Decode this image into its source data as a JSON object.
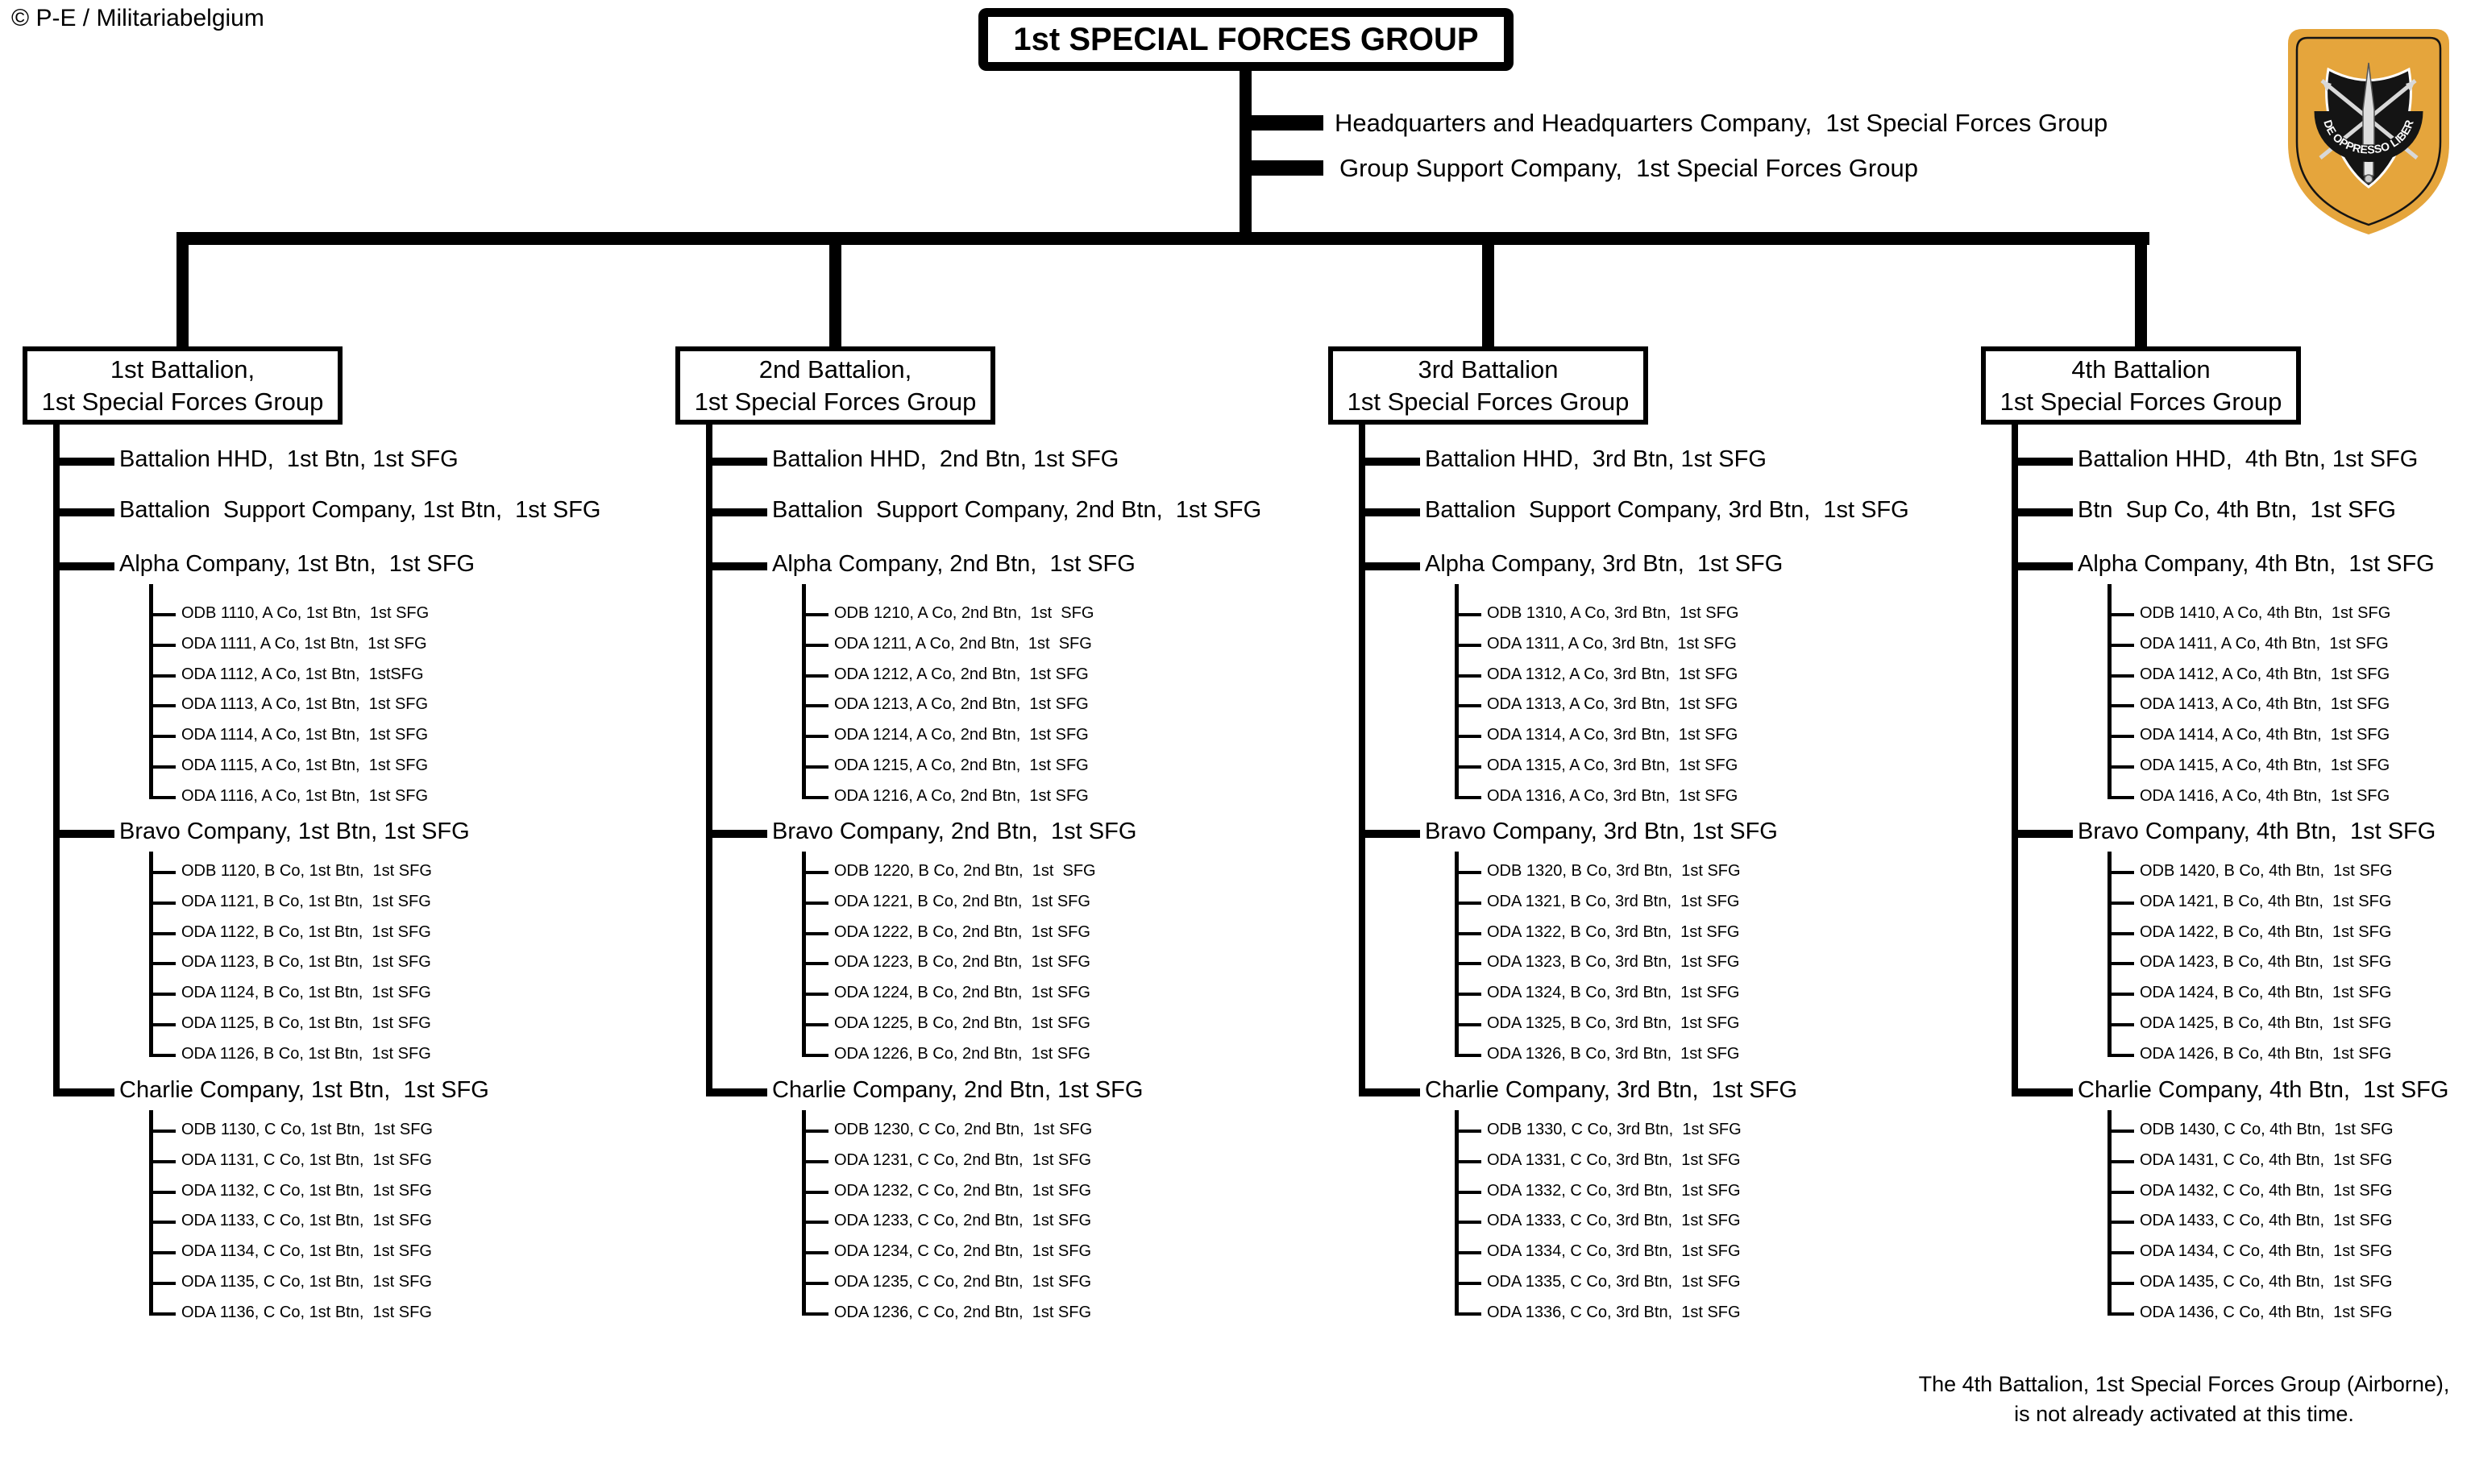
{
  "copyright": "© P-E / Militariabelgium",
  "title": "1st SPECIAL FORCES GROUP",
  "group_units": [
    "Headquarters and Headquarters Company,  1st Special Forces Group",
    "Group Support Company,  1st Special Forces Group"
  ],
  "badge": {
    "motto": "DE OPPRESSO LIBER",
    "gold": "#E5A53C",
    "black": "#141414",
    "silver": "#D8D8D8"
  },
  "note_lines": [
    "The 4th Battalion, 1st Special Forces Group (Airborne),",
    "is not already activated at this time."
  ],
  "battalions": [
    {
      "box_lines": [
        "1st Battalion,",
        "1st Special Forces Group"
      ],
      "companies": [
        {
          "label": "Battalion HHD,  1st Btn, 1st SFG",
          "teams": []
        },
        {
          "label": "Battalion  Support Company, 1st Btn,  1st SFG",
          "teams": []
        },
        {
          "label": "Alpha Company, 1st Btn,  1st SFG",
          "teams": [
            "ODB 1110, A Co, 1st Btn,  1st SFG",
            "ODA 1111, A Co, 1st Btn,  1st SFG",
            "ODA 1112, A Co, 1st Btn,  1stSFG",
            "ODA 1113, A Co, 1st Btn,  1st SFG",
            "ODA 1114, A Co, 1st Btn,  1st SFG",
            "ODA 1115, A Co, 1st Btn,  1st SFG",
            "ODA 1116, A Co, 1st Btn,  1st SFG"
          ]
        },
        {
          "label": "Bravo Company, 1st Btn, 1st SFG",
          "teams": [
            "ODB 1120, B Co, 1st Btn,  1st SFG",
            "ODA 1121, B Co, 1st Btn,  1st SFG",
            "ODA 1122, B Co, 1st Btn,  1st SFG",
            "ODA 1123, B Co, 1st Btn,  1st SFG",
            "ODA 1124, B Co, 1st Btn,  1st SFG",
            "ODA 1125, B Co, 1st Btn,  1st SFG",
            "ODA 1126, B Co, 1st Btn,  1st SFG"
          ]
        },
        {
          "label": "Charlie Company, 1st Btn,  1st SFG",
          "teams": [
            "ODB 1130, C Co, 1st Btn,  1st SFG",
            "ODA 1131, C Co, 1st Btn,  1st SFG",
            "ODA 1132, C Co, 1st Btn,  1st SFG",
            "ODA 1133, C Co, 1st Btn,  1st SFG",
            "ODA 1134, C Co, 1st Btn,  1st SFG",
            "ODA 1135, C Co, 1st Btn,  1st SFG",
            "ODA 1136, C Co, 1st Btn,  1st SFG"
          ]
        }
      ]
    },
    {
      "box_lines": [
        "2nd Battalion,",
        "1st Special Forces Group"
      ],
      "companies": [
        {
          "label": "Battalion HHD,  2nd Btn, 1st SFG",
          "teams": []
        },
        {
          "label": "Battalion  Support Company, 2nd Btn,  1st SFG",
          "teams": []
        },
        {
          "label": "Alpha Company, 2nd Btn,  1st SFG",
          "teams": [
            "ODB 1210, A Co, 2nd Btn,  1st  SFG",
            "ODA 1211, A Co, 2nd Btn,  1st  SFG",
            "ODA 1212, A Co, 2nd Btn,  1st SFG",
            "ODA 1213, A Co, 2nd Btn,  1st SFG",
            "ODA 1214, A Co, 2nd Btn,  1st SFG",
            "ODA 1215, A Co, 2nd Btn,  1st SFG",
            "ODA 1216, A Co, 2nd Btn,  1st SFG"
          ]
        },
        {
          "label": "Bravo Company, 2nd Btn,  1st SFG",
          "teams": [
            "ODB 1220, B Co, 2nd Btn,  1st  SFG",
            "ODA 1221, B Co, 2nd Btn,  1st SFG",
            "ODA 1222, B Co, 2nd Btn,  1st SFG",
            "ODA 1223, B Co, 2nd Btn,  1st SFG",
            "ODA 1224, B Co, 2nd Btn,  1st SFG",
            "ODA 1225, B Co, 2nd Btn,  1st SFG",
            "ODA 1226, B Co, 2nd Btn,  1st SFG"
          ]
        },
        {
          "label": "Charlie Company, 2nd Btn, 1st SFG",
          "teams": [
            "ODB 1230, C Co, 2nd Btn,  1st SFG",
            "ODA 1231, C Co, 2nd Btn,  1st SFG",
            "ODA 1232, C Co, 2nd Btn,  1st SFG",
            "ODA 1233, C Co, 2nd Btn,  1st SFG",
            "ODA 1234, C Co, 2nd Btn,  1st SFG",
            "ODA 1235, C Co, 2nd Btn,  1st SFG",
            "ODA 1236, C Co, 2nd Btn,  1st SFG"
          ]
        }
      ]
    },
    {
      "box_lines": [
        "3rd Battalion",
        "1st Special Forces Group"
      ],
      "companies": [
        {
          "label": "Battalion HHD,  3rd Btn, 1st SFG",
          "teams": []
        },
        {
          "label": "Battalion  Support Company, 3rd Btn,  1st SFG",
          "teams": []
        },
        {
          "label": "Alpha Company, 3rd Btn,  1st SFG",
          "teams": [
            "ODB 1310, A Co, 3rd Btn,  1st SFG",
            "ODA 1311, A Co, 3rd Btn,  1st SFG",
            "ODA 1312, A Co, 3rd Btn,  1st SFG",
            "ODA 1313, A Co, 3rd Btn,  1st SFG",
            "ODA 1314, A Co, 3rd Btn,  1st SFG",
            "ODA 1315, A Co, 3rd Btn,  1st SFG",
            "ODA 1316, A Co, 3rd Btn,  1st SFG"
          ]
        },
        {
          "label": "Bravo Company, 3rd Btn, 1st SFG",
          "teams": [
            "ODB 1320, B Co, 3rd Btn,  1st SFG",
            "ODA 1321, B Co, 3rd Btn,  1st SFG",
            "ODA 1322, B Co, 3rd Btn,  1st SFG",
            "ODA 1323, B Co, 3rd Btn,  1st SFG",
            "ODA 1324, B Co, 3rd Btn,  1st SFG",
            "ODA 1325, B Co, 3rd Btn,  1st SFG",
            "ODA 1326, B Co, 3rd Btn,  1st SFG"
          ]
        },
        {
          "label": "Charlie Company, 3rd Btn,  1st SFG",
          "teams": [
            "ODB 1330, C Co, 3rd Btn,  1st SFG",
            "ODA 1331, C Co, 3rd Btn,  1st SFG",
            "ODA 1332, C Co, 3rd Btn,  1st SFG",
            "ODA 1333, C Co, 3rd Btn,  1st SFG",
            "ODA 1334, C Co, 3rd Btn,  1st SFG",
            "ODA 1335, C Co, 3rd Btn,  1st SFG",
            "ODA 1336, C Co, 3rd Btn,  1st SFG"
          ]
        }
      ]
    },
    {
      "box_lines": [
        "4th Battalion",
        "1st Special Forces Group"
      ],
      "companies": [
        {
          "label": "Battalion HHD,  4th Btn, 1st SFG",
          "teams": []
        },
        {
          "label": "Btn  Sup Co, 4th Btn,  1st SFG",
          "teams": []
        },
        {
          "label": "Alpha Company, 4th Btn,  1st SFG",
          "teams": [
            "ODB 1410, A Co, 4th Btn,  1st SFG",
            "ODA 1411, A Co, 4th Btn,  1st SFG",
            "ODA 1412, A Co, 4th Btn,  1st SFG",
            "ODA 1413, A Co, 4th Btn,  1st SFG",
            "ODA 1414, A Co, 4th Btn,  1st SFG",
            "ODA 1415, A Co, 4th Btn,  1st SFG",
            "ODA 1416, A Co, 4th Btn,  1st SFG"
          ]
        },
        {
          "label": "Bravo Company, 4th Btn,  1st SFG",
          "teams": [
            "ODB 1420, B Co, 4th Btn,  1st SFG",
            "ODA 1421, B Co, 4th Btn,  1st SFG",
            "ODA 1422, B Co, 4th Btn,  1st SFG",
            "ODA 1423, B Co, 4th Btn,  1st SFG",
            "ODA 1424, B Co, 4th Btn,  1st SFG",
            "ODA 1425, B Co, 4th Btn,  1st SFG",
            "ODA 1426, B Co, 4th Btn,  1st SFG"
          ]
        },
        {
          "label": "Charlie Company, 4th Btn,  1st SFG",
          "teams": [
            "ODB 1430, C Co, 4th Btn,  1st SFG",
            "ODA 1431, C Co, 4th Btn,  1st SFG",
            "ODA 1432, C Co, 4th Btn,  1st SFG",
            "ODA 1433, C Co, 4th Btn,  1st SFG",
            "ODA 1434, C Co, 4th Btn,  1st SFG",
            "ODA 1435, C Co, 4th Btn,  1st SFG",
            "ODA 1436, C Co, 4th Btn,  1st SFG"
          ]
        }
      ]
    }
  ]
}
